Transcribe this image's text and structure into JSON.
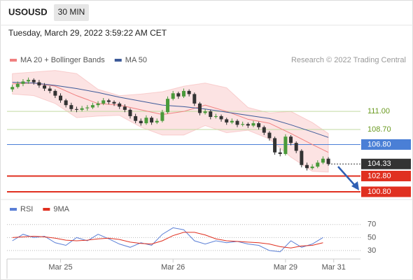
{
  "header": {
    "symbol": "USOUSD",
    "timeframe": "30 MIN",
    "datetime": "Tuesday, March 29, 2022 3:59:22 AM CET"
  },
  "chart_data": [
    {
      "type": "candlestick",
      "credit": "Research © 2022 Trading Central",
      "up_color": "#4a9a3a",
      "down_color": "#333333",
      "xlim": [
        -1,
        65
      ],
      "ylim": [
        100,
        116.7
      ],
      "xticks": [
        {
          "value": 9,
          "label": "Mar 25"
        },
        {
          "value": 30,
          "label": "Mar 26"
        },
        {
          "value": 51,
          "label": "Mar 29"
        },
        {
          "value": 60,
          "label": "Mar 31"
        }
      ],
      "ohlc": [
        [
          113.8,
          114.4,
          113.5,
          114.1
        ],
        [
          114.1,
          114.8,
          113.9,
          114.5
        ],
        [
          114.5,
          115.1,
          114.2,
          114.8
        ],
        [
          114.8,
          115.3,
          114.5,
          115.0
        ],
        [
          115.0,
          115.2,
          114.4,
          114.7
        ],
        [
          114.7,
          115.0,
          114.0,
          114.3
        ],
        [
          114.3,
          114.6,
          113.6,
          113.9
        ],
        [
          113.9,
          114.2,
          113.3,
          113.6
        ],
        [
          113.6,
          113.8,
          112.7,
          113.0
        ],
        [
          113.0,
          113.3,
          112.1,
          112.4
        ],
        [
          112.4,
          112.6,
          111.5,
          111.8
        ],
        [
          111.8,
          112.1,
          111.0,
          111.3
        ],
        [
          111.3,
          111.6,
          110.9,
          111.2
        ],
        [
          111.2,
          111.7,
          111.0,
          111.4
        ],
        [
          111.4,
          111.8,
          111.1,
          111.5
        ],
        [
          111.5,
          112.1,
          111.3,
          111.8
        ],
        [
          111.8,
          112.3,
          111.5,
          112.0
        ],
        [
          112.0,
          112.7,
          111.8,
          112.4
        ],
        [
          112.4,
          112.6,
          111.9,
          112.2
        ],
        [
          112.2,
          112.4,
          111.7,
          112.0
        ],
        [
          112.0,
          112.2,
          111.3,
          111.6
        ],
        [
          111.6,
          111.9,
          110.9,
          111.2
        ],
        [
          111.2,
          111.4,
          110.1,
          110.4
        ],
        [
          110.4,
          110.7,
          109.5,
          109.8
        ],
        [
          109.8,
          110.1,
          109.2,
          109.5
        ],
        [
          109.5,
          110.5,
          109.3,
          110.2
        ],
        [
          110.2,
          110.4,
          109.3,
          109.6
        ],
        [
          109.6,
          110.1,
          109.4,
          109.8
        ],
        [
          109.8,
          111.2,
          109.6,
          110.9
        ],
        [
          110.9,
          112.9,
          110.7,
          112.6
        ],
        [
          112.6,
          113.6,
          112.4,
          113.3
        ],
        [
          113.3,
          113.5,
          112.6,
          112.9
        ],
        [
          112.9,
          113.9,
          112.7,
          113.6
        ],
        [
          113.6,
          113.8,
          112.9,
          113.2
        ],
        [
          113.2,
          113.4,
          111.7,
          112.0
        ],
        [
          112.0,
          112.2,
          110.5,
          110.8
        ],
        [
          110.8,
          111.3,
          110.6,
          111.0
        ],
        [
          111.0,
          111.2,
          110.0,
          110.3
        ],
        [
          110.3,
          110.7,
          110.1,
          110.4
        ],
        [
          110.4,
          110.6,
          109.7,
          110.0
        ],
        [
          110.0,
          110.2,
          109.3,
          109.6
        ],
        [
          109.6,
          110.1,
          109.4,
          109.8
        ],
        [
          109.8,
          110.0,
          109.0,
          109.3
        ],
        [
          109.3,
          109.7,
          109.1,
          109.4
        ],
        [
          109.4,
          109.6,
          108.9,
          109.2
        ],
        [
          109.2,
          109.8,
          109.0,
          109.5
        ],
        [
          109.5,
          109.7,
          108.7,
          109.0
        ],
        [
          109.0,
          109.2,
          108.0,
          108.3
        ],
        [
          108.3,
          108.5,
          107.3,
          107.6
        ],
        [
          107.6,
          107.8,
          105.5,
          105.8
        ],
        [
          105.8,
          106.3,
          105.3,
          105.6
        ],
        [
          105.6,
          108.1,
          105.4,
          107.8
        ],
        [
          107.8,
          108.0,
          106.7,
          107.0
        ],
        [
          107.0,
          107.2,
          105.7,
          106.0
        ],
        [
          106.0,
          106.2,
          103.9,
          104.2
        ],
        [
          104.2,
          104.5,
          103.5,
          103.8
        ],
        [
          103.8,
          104.3,
          103.6,
          104.0
        ],
        [
          104.0,
          104.8,
          103.8,
          104.5
        ],
        [
          104.5,
          105.3,
          104.3,
          105.0
        ],
        [
          105.0,
          105.2,
          104.1,
          104.33
        ]
      ],
      "series": [
        {
          "name": "MA 20 + Bollinger Bands",
          "color": "#f08080",
          "x": [
            0,
            4,
            8,
            12,
            16,
            20,
            24,
            28,
            32,
            36,
            40,
            44,
            48,
            52,
            56,
            59
          ],
          "values": [
            114.5,
            114.6,
            114.2,
            113.0,
            112.0,
            111.8,
            111.2,
            110.6,
            111.0,
            111.8,
            111.0,
            110.0,
            109.5,
            108.2,
            106.8,
            105.8
          ],
          "upper": [
            115.8,
            116.0,
            116.2,
            115.8,
            113.8,
            113.0,
            113.2,
            113.5,
            114.2,
            114.6,
            114.0,
            111.5,
            110.8,
            111.0,
            109.6,
            108.2
          ],
          "lower": [
            113.2,
            113.0,
            112.0,
            110.2,
            110.4,
            110.5,
            109.0,
            108.0,
            108.0,
            109.2,
            108.3,
            108.6,
            107.5,
            105.2,
            103.4,
            103.3
          ]
        },
        {
          "name": "MA 50",
          "color": "#3d5a99",
          "x": [
            0,
            4,
            8,
            12,
            16,
            20,
            24,
            28,
            32,
            36,
            40,
            44,
            48,
            52,
            56,
            59
          ],
          "values": [
            114.7,
            114.6,
            114.3,
            113.9,
            113.4,
            112.8,
            112.3,
            111.8,
            111.6,
            111.3,
            110.9,
            110.5,
            110.1,
            109.3,
            108.4,
            107.7
          ]
        }
      ],
      "levels": [
        {
          "value": 111.0,
          "label": "111.00",
          "color": "#6a9a20",
          "line_color": "#c2d9a0",
          "boxed": false
        },
        {
          "value": 108.7,
          "label": "108.70",
          "color": "#6a9a20",
          "line_color": "#c2d9a0",
          "boxed": false
        },
        {
          "value": 106.8,
          "label": "106.80",
          "color": "#4a7fd6",
          "line_color": "#4a7fd6",
          "boxed": true
        },
        {
          "value": 104.33,
          "label": "104.33",
          "color": "#333333",
          "line_color": "#333333",
          "boxed": true,
          "style": "dotted"
        },
        {
          "value": 102.8,
          "label": "102.80",
          "color": "#e03020",
          "line_color": "#e03020",
          "boxed": true
        },
        {
          "value": 100.8,
          "label": "100.80",
          "color": "#e03020",
          "line_color": "#e03020",
          "boxed": true
        }
      ]
    },
    {
      "type": "line",
      "ylim": [
        17,
        87
      ],
      "yticks": [
        30,
        50,
        70
      ],
      "grid": true,
      "series": [
        {
          "name": "RSI",
          "color": "#5b7fd6",
          "x": [
            0,
            2,
            4,
            6,
            8,
            10,
            12,
            14,
            16,
            18,
            20,
            22,
            24,
            26,
            28,
            30,
            32,
            34,
            36,
            38,
            40,
            42,
            44,
            46,
            48,
            50,
            52,
            54,
            56,
            58
          ],
          "values": [
            45,
            55,
            50,
            52,
            42,
            38,
            50,
            45,
            55,
            48,
            40,
            35,
            42,
            38,
            55,
            65,
            62,
            45,
            40,
            45,
            42,
            44,
            40,
            38,
            30,
            28,
            45,
            35,
            40,
            50
          ]
        },
        {
          "name": "9MA",
          "color": "#e03020",
          "x": [
            0,
            2,
            4,
            6,
            8,
            10,
            12,
            14,
            16,
            18,
            20,
            22,
            24,
            26,
            28,
            30,
            32,
            34,
            36,
            38,
            40,
            42,
            44,
            46,
            48,
            50,
            52,
            54,
            56,
            58
          ],
          "values": [
            50,
            51,
            52,
            51,
            49,
            46,
            45,
            46,
            48,
            49,
            47,
            43,
            41,
            40,
            45,
            53,
            58,
            58,
            54,
            48,
            45,
            44,
            43,
            42,
            40,
            36,
            34,
            37,
            38,
            42
          ]
        }
      ]
    }
  ]
}
